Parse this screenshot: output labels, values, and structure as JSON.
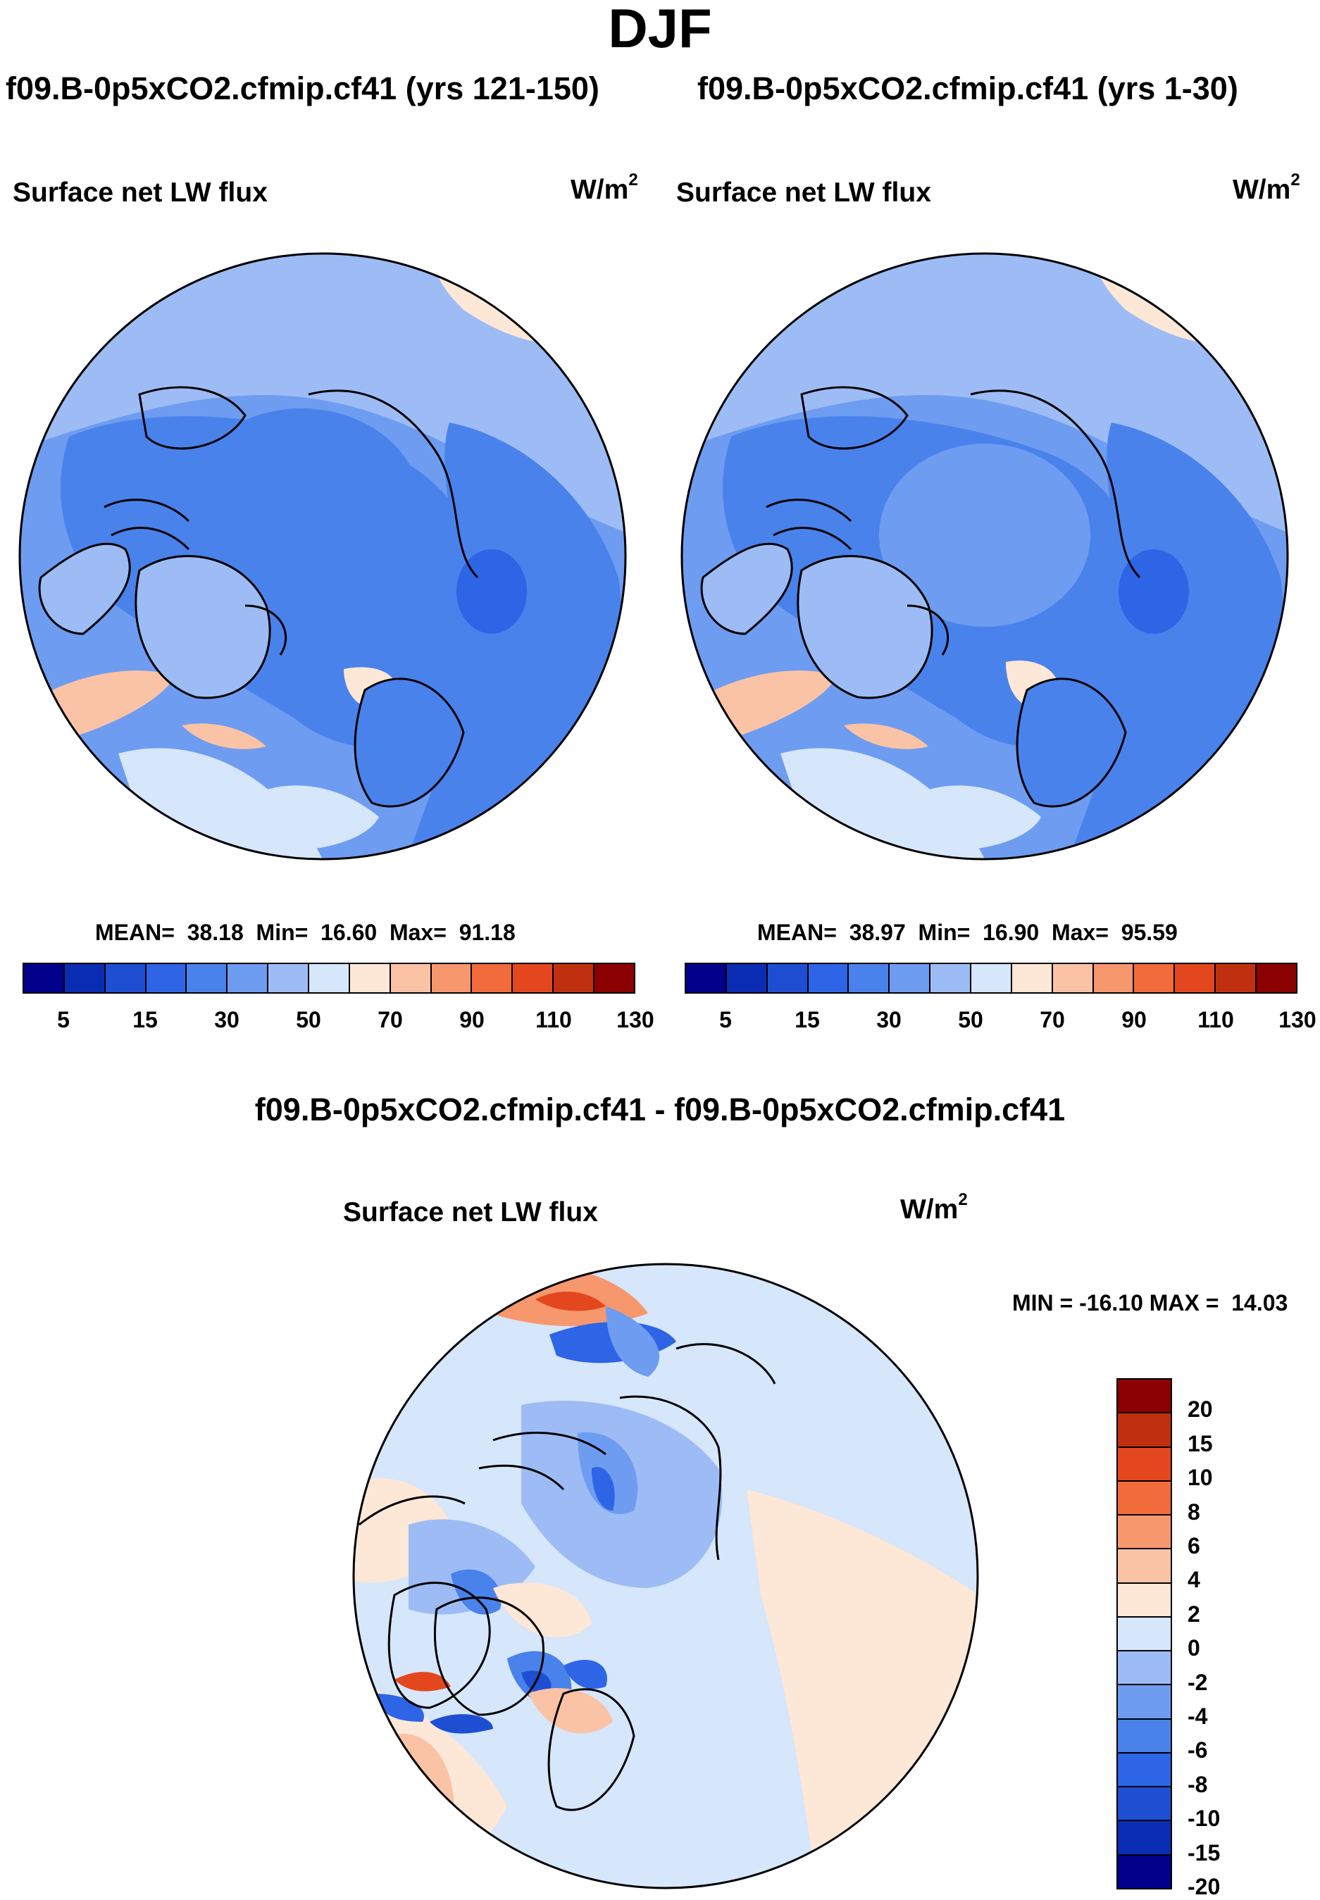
{
  "title": "DJF",
  "panels": [
    {
      "run_title": "f09.B-0p5xCO2.cfmip.cf41 (yrs 121-150)",
      "label": "Surface net LW flux",
      "units": "W/m",
      "units_sup": "2",
      "stats": {
        "mean_label": "MEAN=",
        "mean": "38.18",
        "min_label": "Min=",
        "min": "16.60",
        "max_label": "Max=",
        "max": "91.18"
      }
    },
    {
      "run_title": "f09.B-0p5xCO2.cfmip.cf41 (yrs 1-30)",
      "label": "Surface net LW flux",
      "units": "W/m",
      "units_sup": "2",
      "stats": {
        "mean_label": "MEAN=",
        "mean": "38.97",
        "min_label": "Min=",
        "min": "16.90",
        "max_label": "Max=",
        "max": "95.59"
      }
    }
  ],
  "colorbar": {
    "colors": [
      "#00008b",
      "#0a2db4",
      "#1e4ed2",
      "#2e64e6",
      "#4a82ec",
      "#6e9cf0",
      "#9dbcf5",
      "#d6e6fb",
      "#fde7d7",
      "#fbc3a6",
      "#f7976e",
      "#f26b3b",
      "#e4471e",
      "#c0300f",
      "#8b0000"
    ],
    "tick_labels": [
      "5",
      "15",
      "30",
      "50",
      "70",
      "90",
      "110",
      "130"
    ]
  },
  "difference": {
    "title": "f09.B-0p5xCO2.cfmip.cf41 - f09.B-0p5xCO2.cfmip.cf41",
    "label": "Surface net LW flux",
    "units": "W/m",
    "units_sup": "2",
    "min_max": "MIN = -16.10 MAX =  14.03",
    "colorbar": {
      "colors_top_to_bottom": [
        "#8b0000",
        "#c0300f",
        "#e4471e",
        "#f26b3b",
        "#f7976e",
        "#fbc3a6",
        "#fde7d7",
        "#d6e6fb",
        "#9dbcf5",
        "#6e9cf0",
        "#4a82ec",
        "#2e64e6",
        "#1e4ed2",
        "#0a2db4",
        "#00008b"
      ],
      "tick_labels": [
        "20",
        "15",
        "10",
        "8",
        "6",
        "4",
        "2",
        "0",
        "-2",
        "-4",
        "-6",
        "-8",
        "-10",
        "-15",
        "-20"
      ]
    }
  }
}
